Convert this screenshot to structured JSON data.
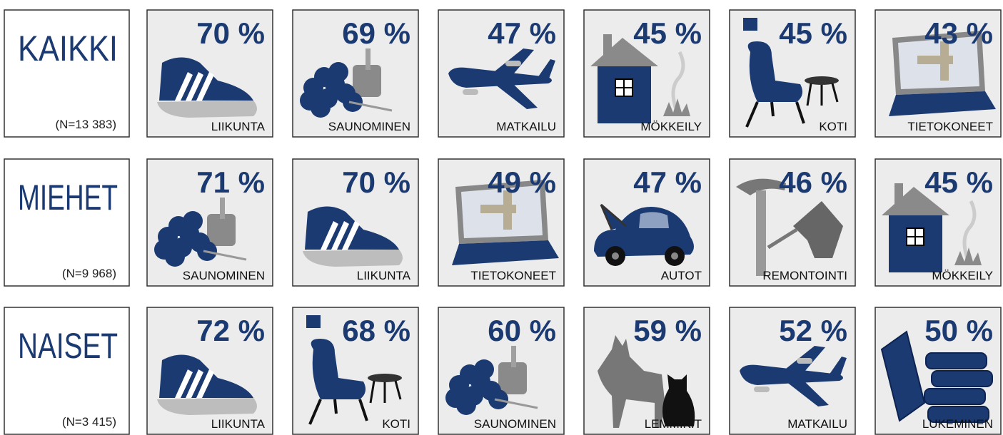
{
  "rows": [
    {
      "group": "KAIKKI",
      "n": "(N=13 383)",
      "tiles": [
        {
          "percent": "70 %",
          "label": "LIIKUNTA"
        },
        {
          "percent": "69 %",
          "label": "SAUNOMINEN"
        },
        {
          "percent": "47 %",
          "label": "MATKAILU"
        },
        {
          "percent": "45 %",
          "label": "MÖKKEILY"
        },
        {
          "percent": "45 %",
          "label": "KOTI"
        },
        {
          "percent": "43 %",
          "label": "TIETOKONEET"
        }
      ]
    },
    {
      "group": "MIEHET",
      "n": "(N=9 968)",
      "tiles": [
        {
          "percent": "71 %",
          "label": "SAUNOMINEN"
        },
        {
          "percent": "70 %",
          "label": "LIIKUNTA"
        },
        {
          "percent": "49 %",
          "label": "TIETOKONEET"
        },
        {
          "percent": "47 %",
          "label": "AUTOT"
        },
        {
          "percent": "46 %",
          "label": "REMONTOINTI"
        },
        {
          "percent": "45 %",
          "label": "MÖKKEILY"
        }
      ]
    },
    {
      "group": "NAISET",
      "n": "(N=3 415)",
      "tiles": [
        {
          "percent": "72 %",
          "label": "LIIKUNTA"
        },
        {
          "percent": "68 %",
          "label": "KOTI"
        },
        {
          "percent": "60 %",
          "label": "SAUNOMINEN"
        },
        {
          "percent": "59 %",
          "label": "LEMMIKIT"
        },
        {
          "percent": "52 %",
          "label": "MATKAILU"
        },
        {
          "percent": "50 %",
          "label": "LUKEMINEN"
        }
      ]
    }
  ]
}
